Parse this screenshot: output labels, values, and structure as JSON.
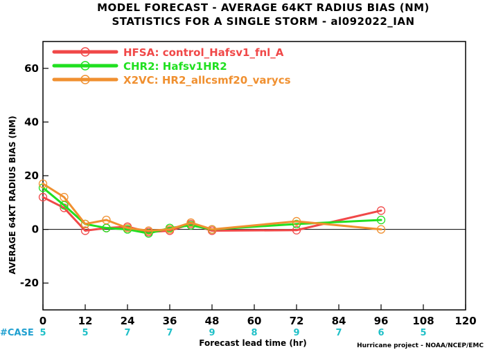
{
  "chart_data": {
    "type": "line",
    "title": "MODEL FORECAST - AVERAGE 64KT RADIUS BIAS (NM)",
    "subtitle": "STATISTICS FOR A SINGLE STORM - al092022_IAN",
    "xlabel": "Forecast lead time (hr)",
    "ylabel": "AVERAGE 64KT RADIUS BIAS (NM)",
    "xlim": [
      0,
      120
    ],
    "ylim": [
      -30,
      70
    ],
    "x_ticks": [
      0,
      12,
      24,
      36,
      48,
      60,
      72,
      84,
      96,
      108,
      120
    ],
    "y_ticks": [
      -20,
      0,
      20,
      40,
      60
    ],
    "zero_line": true,
    "legend_position": "top-left",
    "series": [
      {
        "name": "HFSA: control_Hafsv1_fnl_A",
        "color": "#f04848",
        "x": [
          0,
          6,
          12,
          18,
          24,
          30,
          36,
          42,
          48,
          72,
          96
        ],
        "y": [
          12,
          8,
          -0.5,
          0.5,
          1,
          -1,
          -0.5,
          2,
          -0.5,
          -0.3,
          7
        ]
      },
      {
        "name": "CHR2: Hafsv1HR2",
        "color": "#20e020",
        "x": [
          0,
          6,
          12,
          18,
          24,
          30,
          36,
          42,
          48,
          72,
          96
        ],
        "y": [
          15.5,
          9,
          2,
          0.5,
          0,
          -1.5,
          0.5,
          1.5,
          0,
          2,
          3.5
        ]
      },
      {
        "name": "X2VC: HR2_allcsmf20_varycs",
        "color": "#f09030",
        "x": [
          0,
          6,
          12,
          18,
          24,
          30,
          36,
          42,
          48,
          72,
          96
        ],
        "y": [
          17,
          12,
          2,
          3.5,
          0.5,
          -0.5,
          0,
          2.5,
          0,
          3,
          0
        ]
      }
    ],
    "case_label": "#CASE",
    "case_counts": [
      {
        "x": 0,
        "n": "5"
      },
      {
        "x": 12,
        "n": "5"
      },
      {
        "x": 24,
        "n": "7"
      },
      {
        "x": 36,
        "n": "7"
      },
      {
        "x": 48,
        "n": "9"
      },
      {
        "x": 60,
        "n": "8"
      },
      {
        "x": 72,
        "n": "9"
      },
      {
        "x": 84,
        "n": "7"
      },
      {
        "x": 96,
        "n": "6"
      },
      {
        "x": 108,
        "n": "5"
      }
    ],
    "credit": "Hurricane project - NOAA/NCEP/EMC"
  },
  "colors": {
    "case_label": "#20a0d0",
    "case_count": "#20c0c8",
    "axis": "#000000"
  }
}
